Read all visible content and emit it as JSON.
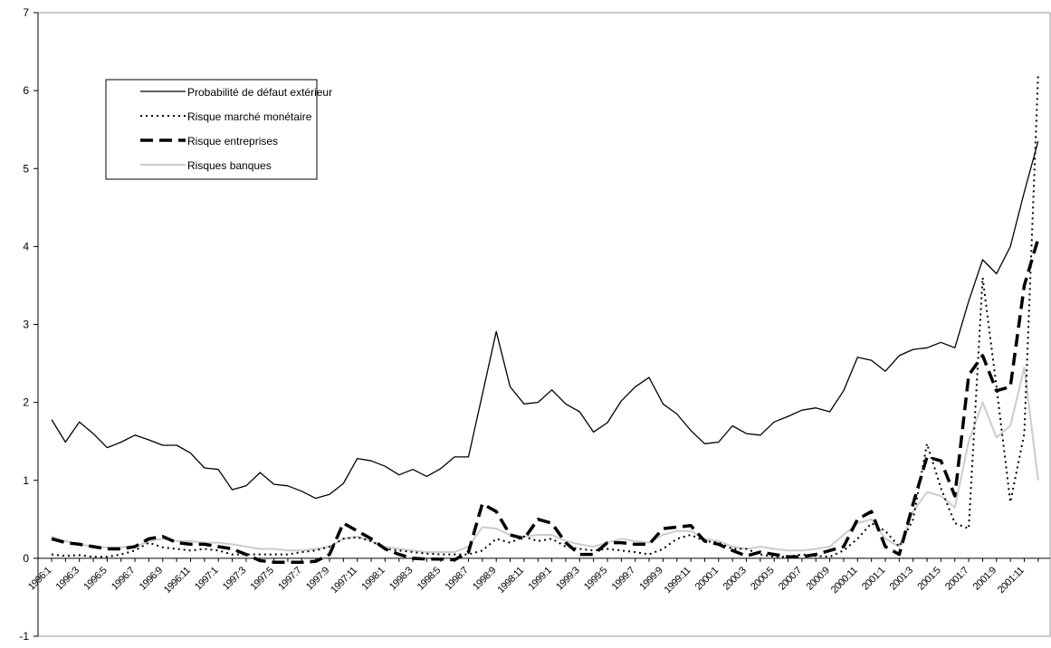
{
  "chart_data": {
    "type": "line",
    "categories": [
      "1996:1",
      null,
      "1996:3",
      null,
      "1996:5",
      null,
      "1996:7",
      null,
      "1996:9",
      null,
      "1996:11",
      null,
      "1997:1",
      null,
      "1997:3",
      null,
      "1997:5",
      null,
      "1997:7",
      null,
      "1997:9",
      null,
      "1997:11",
      null,
      "1998:1",
      null,
      "1998:3",
      null,
      "1998:5",
      null,
      "1998:7",
      null,
      "1998:9",
      null,
      "1998:11",
      null,
      "1999:1",
      null,
      "1999:3",
      null,
      "1999:5",
      null,
      "1999:7",
      null,
      "1999:9",
      null,
      "1999:11",
      null,
      "2000:1",
      null,
      "2000:3",
      null,
      "2000:5",
      null,
      "2000:7",
      null,
      "2000:9",
      null,
      "2000:11",
      null,
      "2001:1",
      null,
      "2001:3",
      null,
      "2001:5",
      null,
      "2001:7",
      null,
      "2001:9",
      null,
      "2001:11",
      null
    ],
    "series": [
      {
        "name": "Probabilité de défaut extérieur",
        "color": "#000000",
        "style": "solid",
        "width": 1.3,
        "values": [
          1.78,
          1.49,
          1.75,
          1.6,
          1.42,
          1.49,
          1.58,
          1.52,
          1.45,
          1.45,
          1.35,
          1.16,
          1.14,
          0.88,
          0.93,
          1.1,
          0.95,
          0.93,
          0.86,
          0.77,
          0.82,
          0.96,
          1.28,
          1.25,
          1.18,
          1.07,
          1.14,
          1.05,
          1.15,
          1.3,
          1.3,
          2.1,
          2.91,
          2.2,
          1.98,
          2.0,
          2.16,
          1.98,
          1.88,
          1.62,
          1.74,
          2.02,
          2.2,
          2.32,
          1.98,
          1.85,
          1.64,
          1.47,
          1.49,
          1.7,
          1.6,
          1.58,
          1.75,
          1.82,
          1.9,
          1.93,
          1.88,
          2.15,
          2.58,
          2.54,
          2.4,
          2.6,
          2.68,
          2.7,
          2.77,
          2.7,
          3.3,
          3.83,
          3.65,
          4.0,
          4.7,
          5.35
        ]
      },
      {
        "name": "Risque marché monétaire",
        "color": "#000000",
        "style": "dotted",
        "width": 2,
        "values": [
          0.05,
          0.03,
          0.04,
          0.02,
          0.02,
          0.05,
          0.1,
          0.2,
          0.14,
          0.12,
          0.1,
          0.12,
          0.1,
          0.05,
          0.05,
          0.05,
          0.05,
          0.05,
          0.08,
          0.1,
          0.15,
          0.25,
          0.27,
          0.22,
          0.12,
          0.1,
          0.08,
          0.06,
          0.05,
          0.05,
          0.05,
          0.1,
          0.25,
          0.2,
          0.28,
          0.22,
          0.25,
          0.15,
          0.12,
          0.1,
          0.12,
          0.1,
          0.08,
          0.05,
          0.12,
          0.25,
          0.3,
          0.22,
          0.2,
          0.12,
          0.12,
          0.05,
          0.02,
          0.02,
          0.05,
          0.03,
          0.02,
          0.1,
          0.25,
          0.45,
          0.35,
          0.15,
          0.5,
          1.47,
          0.9,
          0.45,
          0.38,
          3.6,
          2.2,
          0.72,
          1.6,
          6.2
        ]
      },
      {
        "name": "Risque entreprises",
        "color": "#000000",
        "style": "dashed",
        "width": 3.5,
        "values": [
          0.25,
          0.2,
          0.18,
          0.15,
          0.12,
          0.12,
          0.15,
          0.25,
          0.28,
          0.2,
          0.18,
          0.18,
          0.15,
          0.12,
          0.05,
          -0.03,
          -0.05,
          -0.05,
          -0.05,
          -0.04,
          0.05,
          0.45,
          0.35,
          0.25,
          0.12,
          0.05,
          0.0,
          -0.01,
          -0.01,
          -0.02,
          0.08,
          0.7,
          0.6,
          0.3,
          0.25,
          0.5,
          0.45,
          0.2,
          0.05,
          0.05,
          0.2,
          0.2,
          0.18,
          0.18,
          0.38,
          0.4,
          0.42,
          0.22,
          0.18,
          0.1,
          0.03,
          0.08,
          0.05,
          0.02,
          0.02,
          0.05,
          0.1,
          0.15,
          0.5,
          0.6,
          0.15,
          0.05,
          0.7,
          1.3,
          1.25,
          0.8,
          2.35,
          2.6,
          2.15,
          2.2,
          3.5,
          4.1
        ]
      },
      {
        "name": "Risques banques",
        "color": "#cccccc",
        "style": "solid",
        "width": 2,
        "values": [
          0.28,
          0.22,
          0.18,
          0.15,
          0.14,
          0.14,
          0.15,
          0.22,
          0.25,
          0.22,
          0.22,
          0.2,
          0.2,
          0.18,
          0.15,
          0.12,
          0.12,
          0.1,
          0.1,
          0.12,
          0.15,
          0.25,
          0.28,
          0.22,
          0.15,
          0.12,
          0.1,
          0.08,
          0.08,
          0.08,
          0.15,
          0.4,
          0.38,
          0.3,
          0.28,
          0.3,
          0.3,
          0.22,
          0.18,
          0.15,
          0.2,
          0.25,
          0.22,
          0.2,
          0.3,
          0.35,
          0.35,
          0.25,
          0.22,
          0.15,
          0.12,
          0.15,
          0.12,
          0.1,
          0.1,
          0.12,
          0.15,
          0.3,
          0.45,
          0.5,
          0.25,
          0.15,
          0.6,
          0.85,
          0.8,
          0.65,
          1.5,
          2.0,
          1.55,
          1.7,
          2.45,
          1.0
        ]
      }
    ],
    "ylim": [
      -1,
      7
    ],
    "yticks": [
      -1,
      0,
      1,
      2,
      3,
      4,
      5,
      6,
      7
    ],
    "legend": "upper-left"
  }
}
